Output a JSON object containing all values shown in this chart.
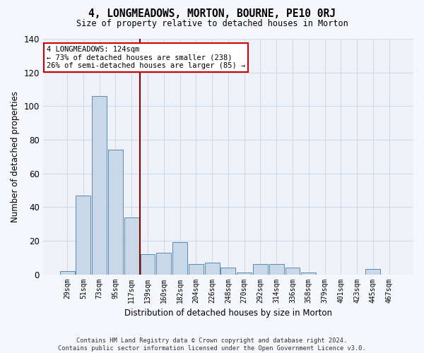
{
  "title": "4, LONGMEADOWS, MORTON, BOURNE, PE10 0RJ",
  "subtitle": "Size of property relative to detached houses in Morton",
  "xlabel": "Distribution of detached houses by size in Morton",
  "ylabel": "Number of detached properties",
  "categories": [
    "29sqm",
    "51sqm",
    "73sqm",
    "95sqm",
    "117sqm",
    "139sqm",
    "160sqm",
    "182sqm",
    "204sqm",
    "226sqm",
    "248sqm",
    "270sqm",
    "292sqm",
    "314sqm",
    "336sqm",
    "358sqm",
    "379sqm",
    "401sqm",
    "423sqm",
    "445sqm",
    "467sqm"
  ],
  "values": [
    2,
    47,
    106,
    74,
    34,
    12,
    13,
    19,
    6,
    7,
    4,
    1,
    6,
    6,
    4,
    1,
    0,
    0,
    0,
    3,
    0
  ],
  "bar_color": "#c8d8e8",
  "bar_edge_color": "#5a8ab0",
  "vline_x": 4.5,
  "vline_color": "#8b0000",
  "annotation_line1": "4 LONGMEADOWS: 124sqm",
  "annotation_line2": "← 73% of detached houses are smaller (238)",
  "annotation_line3": "26% of semi-detached houses are larger (85) →",
  "annotation_box_color": "#ffffff",
  "annotation_box_edge_color": "#cc0000",
  "ylim": [
    0,
    140
  ],
  "yticks": [
    0,
    20,
    40,
    60,
    80,
    100,
    120,
    140
  ],
  "grid_color": "#d0d8e8",
  "bg_color": "#eef2f8",
  "fig_bg_color": "#f5f7fc",
  "footnote": "Contains HM Land Registry data © Crown copyright and database right 2024.\nContains public sector information licensed under the Open Government Licence v3.0."
}
